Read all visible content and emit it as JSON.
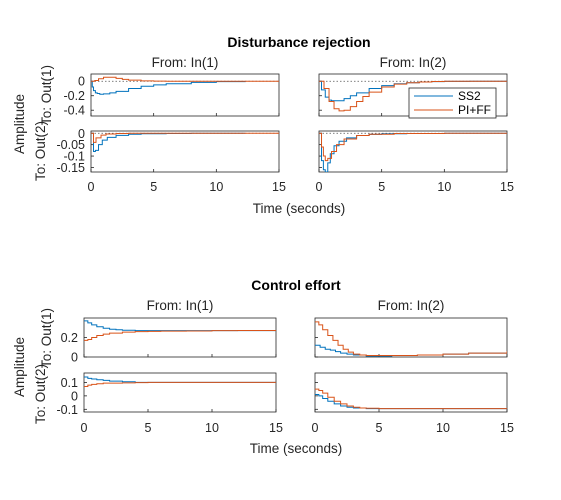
{
  "figure_title_1": "Disturbance rejection",
  "figure_title_2": "Control effort",
  "colors": {
    "SS2": "#0072BD",
    "PI+FF": "#D95319",
    "axes": "#262626"
  },
  "chart_data": [
    {
      "type": "line",
      "title": "Disturbance rejection",
      "xlabel": "Time (seconds)",
      "ylabel": "Amplitude",
      "column_titles": [
        "From: In(1)",
        "From: In(2)"
      ],
      "row_titles": [
        "To: Out(1)",
        "To: Out(2)"
      ],
      "x_ticks": [
        "0",
        "5",
        "10",
        "15"
      ],
      "xlim": [
        0,
        15
      ],
      "legend": {
        "placement": "inside row 1 col 2, bottom-right",
        "entries": [
          "SS2",
          "PI+FF"
        ]
      },
      "rows": [
        {
          "ylim": [
            -0.48,
            0.1
          ],
          "y_ticks": [
            0,
            -0.2,
            -0.4
          ],
          "y_tick_labels": [
            "0",
            "-0.2",
            "-0.4"
          ],
          "panels": [
            {
              "series": [
                {
                  "name": "SS2",
                  "x": [
                    0,
                    0.1,
                    0.2,
                    0.35,
                    0.5,
                    0.7,
                    1,
                    1.5,
                    2,
                    3,
                    4,
                    5,
                    6,
                    8,
                    10,
                    12.3
                  ],
                  "y": [
                    0,
                    -0.08,
                    -0.13,
                    -0.16,
                    -0.17,
                    -0.18,
                    -0.175,
                    -0.16,
                    -0.14,
                    -0.1,
                    -0.07,
                    -0.05,
                    -0.035,
                    -0.015,
                    -0.005,
                    -0.002
                  ]
                },
                {
                  "name": "PI+FF",
                  "x": [
                    0,
                    0.3,
                    0.6,
                    1,
                    1.5,
                    2,
                    2.5,
                    3,
                    4,
                    5,
                    6,
                    8,
                    10,
                    15
                  ],
                  "y": [
                    0,
                    0.01,
                    0.035,
                    0.055,
                    0.055,
                    0.04,
                    0.025,
                    0.015,
                    0.005,
                    0.001,
                    0,
                    0,
                    0,
                    0
                  ]
                }
              ]
            },
            {
              "series": [
                {
                  "name": "SS2",
                  "x": [
                    0,
                    0.2,
                    0.5,
                    0.8,
                    1,
                    1.5,
                    2,
                    2.5,
                    3,
                    4,
                    5,
                    6,
                    7,
                    8,
                    9,
                    10,
                    12,
                    15
                  ],
                  "y": [
                    0,
                    -0.12,
                    -0.22,
                    -0.26,
                    -0.27,
                    -0.27,
                    -0.24,
                    -0.2,
                    -0.16,
                    -0.1,
                    -0.06,
                    -0.035,
                    -0.02,
                    -0.01,
                    -0.005,
                    -0.002,
                    0,
                    0
                  ]
                },
                {
                  "name": "PI+FF",
                  "x": [
                    0,
                    0.4,
                    0.8,
                    1.2,
                    1.6,
                    2,
                    2.5,
                    3,
                    3.5,
                    4,
                    5,
                    6,
                    7,
                    8,
                    9,
                    10,
                    12,
                    15
                  ],
                  "y": [
                    0,
                    -0.1,
                    -0.28,
                    -0.38,
                    -0.41,
                    -0.4,
                    -0.35,
                    -0.28,
                    -0.21,
                    -0.15,
                    -0.08,
                    -0.04,
                    -0.02,
                    -0.01,
                    -0.004,
                    -0.001,
                    0,
                    0
                  ]
                }
              ]
            }
          ]
        },
        {
          "ylim": [
            -0.17,
            0.01
          ],
          "y_ticks": [
            0,
            -0.05,
            -0.1,
            -0.15
          ],
          "y_tick_labels": [
            "0",
            "-0.05",
            "-0.1",
            "-0.15"
          ],
          "panels": [
            {
              "series": [
                {
                  "name": "SS2",
                  "x": [
                    0,
                    0.2,
                    0.35,
                    0.6,
                    0.9,
                    1.3,
                    2,
                    3,
                    4,
                    6,
                    8,
                    10,
                    12.3
                  ],
                  "y": [
                    0,
                    -0.08,
                    -0.075,
                    -0.05,
                    -0.03,
                    -0.018,
                    -0.009,
                    -0.004,
                    -0.002,
                    -0.001,
                    0,
                    0,
                    0
                  ]
                },
                {
                  "name": "PI+FF",
                  "x": [
                    0,
                    0.2,
                    0.4,
                    0.8,
                    1.2,
                    2,
                    3,
                    5,
                    8,
                    15
                  ],
                  "y": [
                    0,
                    -0.04,
                    -0.02,
                    -0.008,
                    -0.003,
                    -0.001,
                    0,
                    0,
                    0,
                    0
                  ]
                }
              ]
            },
            {
              "series": [
                {
                  "name": "SS2",
                  "x": [
                    0,
                    0.2,
                    0.35,
                    0.5,
                    0.7,
                    0.9,
                    1.2,
                    1.6,
                    2.2,
                    3,
                    4,
                    5,
                    7,
                    10,
                    15
                  ],
                  "y": [
                    0,
                    -0.12,
                    -0.16,
                    -0.17,
                    -0.13,
                    -0.09,
                    -0.055,
                    -0.035,
                    -0.02,
                    -0.01,
                    -0.005,
                    -0.002,
                    -0.001,
                    0,
                    0
                  ]
                },
                {
                  "name": "PI+FF",
                  "x": [
                    0,
                    0.2,
                    0.35,
                    0.5,
                    0.7,
                    1,
                    1.4,
                    2,
                    3,
                    4,
                    6,
                    10,
                    15
                  ],
                  "y": [
                    0,
                    -0.06,
                    -0.1,
                    -0.12,
                    -0.11,
                    -0.08,
                    -0.05,
                    -0.025,
                    -0.01,
                    -0.004,
                    -0.001,
                    0,
                    0
                  ]
                }
              ]
            }
          ]
        }
      ]
    },
    {
      "type": "line",
      "title": "Control effort",
      "xlabel": "Time (seconds)",
      "ylabel": "Amplitude",
      "column_titles": [
        "From: In(1)",
        "From: In(2)"
      ],
      "row_titles": [
        "To: Out(1)",
        "To: Out(2)"
      ],
      "x_ticks": [
        "0",
        "5",
        "10",
        "15"
      ],
      "xlim": [
        0,
        15
      ],
      "rows": [
        {
          "ylim": [
            0,
            0.4
          ],
          "y_ticks": [
            0.2,
            0
          ],
          "y_tick_labels": [
            "0.2",
            "0"
          ],
          "panels": [
            {
              "series": [
                {
                  "name": "SS2",
                  "x": [
                    0,
                    0.3,
                    0.6,
                    1,
                    1.5,
                    2,
                    2.5,
                    3,
                    4,
                    5,
                    6,
                    8,
                    10,
                    12,
                    15
                  ],
                  "y": [
                    0.37,
                    0.35,
                    0.33,
                    0.31,
                    0.295,
                    0.285,
                    0.28,
                    0.275,
                    0.27,
                    0.27,
                    0.27,
                    0.27,
                    0.27,
                    0.27,
                    0.27
                  ]
                },
                {
                  "name": "PI+FF",
                  "x": [
                    0,
                    0.3,
                    0.6,
                    1,
                    1.5,
                    2,
                    3,
                    4,
                    5,
                    6,
                    8,
                    10,
                    12,
                    15
                  ],
                  "y": [
                    0.17,
                    0.18,
                    0.2,
                    0.22,
                    0.235,
                    0.245,
                    0.255,
                    0.26,
                    0.263,
                    0.265,
                    0.267,
                    0.27,
                    0.272,
                    0.275
                  ]
                }
              ]
            },
            {
              "series": [
                {
                  "name": "SS2",
                  "x": [
                    0,
                    0.4,
                    0.8,
                    1.2,
                    1.6,
                    2,
                    2.5,
                    3,
                    4,
                    5,
                    6,
                    8,
                    10,
                    12,
                    15
                  ],
                  "y": [
                    0.12,
                    0.1,
                    0.08,
                    0.07,
                    0.055,
                    0.04,
                    0.03,
                    0.02,
                    0.01,
                    0.01,
                    0.015,
                    0.02,
                    0.03,
                    0.04,
                    0.06
                  ]
                },
                {
                  "name": "PI+FF",
                  "x": [
                    0,
                    0.3,
                    0.6,
                    1,
                    1.4,
                    1.8,
                    2.2,
                    2.6,
                    3,
                    3.5,
                    4,
                    5,
                    6,
                    8,
                    10,
                    12,
                    15
                  ],
                  "y": [
                    0.36,
                    0.33,
                    0.28,
                    0.22,
                    0.17,
                    0.12,
                    0.08,
                    0.05,
                    0.03,
                    0.02,
                    0.015,
                    0.015,
                    0.015,
                    0.02,
                    0.03,
                    0.04,
                    0.06
                  ]
                }
              ]
            }
          ]
        },
        {
          "ylim": [
            -0.12,
            0.17
          ],
          "y_ticks": [
            0.1,
            0,
            -0.1
          ],
          "y_tick_labels": [
            "0.1",
            "0",
            "-0.1"
          ],
          "panels": [
            {
              "series": [
                {
                  "name": "SS2",
                  "x": [
                    0,
                    0.3,
                    0.6,
                    1,
                    1.5,
                    2,
                    3,
                    4,
                    5,
                    6,
                    7,
                    8,
                    10,
                    12,
                    15
                  ],
                  "y": [
                    0.14,
                    0.13,
                    0.125,
                    0.12,
                    0.115,
                    0.11,
                    0.105,
                    0.1,
                    0.1,
                    0.1,
                    0.1,
                    0.1,
                    0.1,
                    0.1,
                    0.1
                  ]
                },
                {
                  "name": "PI+FF",
                  "x": [
                    0,
                    0.3,
                    0.6,
                    1,
                    1.5,
                    2,
                    3,
                    4,
                    5,
                    6,
                    8,
                    10,
                    12,
                    15
                  ],
                  "y": [
                    0.07,
                    0.08,
                    0.085,
                    0.09,
                    0.095,
                    0.095,
                    0.097,
                    0.098,
                    0.1,
                    0.1,
                    0.1,
                    0.1,
                    0.1,
                    0.1
                  ]
                }
              ]
            },
            {
              "series": [
                {
                  "name": "SS2",
                  "x": [
                    0,
                    0.3,
                    0.6,
                    1,
                    1.5,
                    2,
                    2.5,
                    3,
                    4,
                    5,
                    6,
                    8,
                    10,
                    12,
                    15
                  ],
                  "y": [
                    0.01,
                    0,
                    -0.02,
                    -0.04,
                    -0.06,
                    -0.075,
                    -0.085,
                    -0.09,
                    -0.095,
                    -0.095,
                    -0.095,
                    -0.095,
                    -0.095,
                    -0.095,
                    -0.095
                  ]
                },
                {
                  "name": "PI+FF",
                  "x": [
                    0,
                    0.3,
                    0.6,
                    1,
                    1.5,
                    2,
                    2.5,
                    3,
                    3.5,
                    4,
                    5,
                    6,
                    8,
                    10,
                    12,
                    15
                  ],
                  "y": [
                    0.05,
                    0.04,
                    0.02,
                    -0.01,
                    -0.04,
                    -0.06,
                    -0.075,
                    -0.085,
                    -0.09,
                    -0.092,
                    -0.095,
                    -0.095,
                    -0.095,
                    -0.095,
                    -0.095,
                    -0.095
                  ]
                }
              ]
            }
          ]
        }
      ]
    }
  ]
}
